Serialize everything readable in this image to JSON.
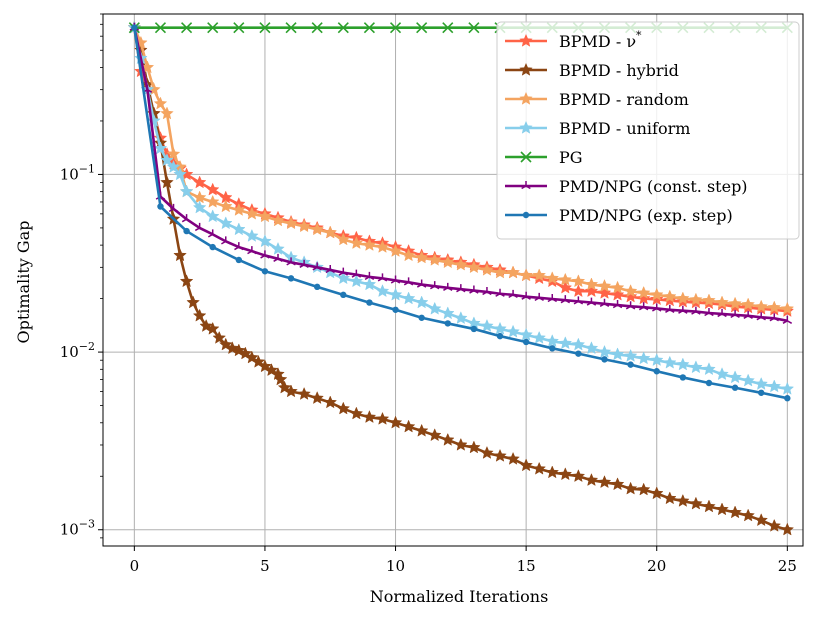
{
  "chart_data": {
    "type": "line",
    "title": "",
    "xlabel": "Normalized Iterations",
    "ylabel": "Optimality Gap",
    "yscale": "log",
    "xlim": [
      -1.2,
      25.6
    ],
    "ylim": [
      0.00081,
      0.8
    ],
    "grid": true,
    "legend_position": "top-right",
    "x_ticks": [
      {
        "value": 0,
        "label": "0"
      },
      {
        "value": 5,
        "label": "5"
      },
      {
        "value": 10,
        "label": "10"
      },
      {
        "value": 15,
        "label": "15"
      },
      {
        "value": 20,
        "label": "20"
      },
      {
        "value": 25,
        "label": "25"
      }
    ],
    "y_ticks": [
      {
        "value": 0.1,
        "base": "10",
        "exp": "−1"
      },
      {
        "value": 0.01,
        "base": "10",
        "exp": "−2"
      },
      {
        "value": 0.001,
        "base": "10",
        "exp": "−3"
      }
    ],
    "series": [
      {
        "name": "BPMD - ν*",
        "label_main": "BPMD - ν",
        "label_sup": "*",
        "color": "#ff6347",
        "marker": "star",
        "x": [
          0,
          0.25,
          0.5,
          0.75,
          1,
          1.25,
          1.5,
          1.75,
          2,
          2.5,
          3,
          3.5,
          4,
          4.5,
          5,
          5.5,
          6,
          6.5,
          7,
          7.5,
          8,
          8.5,
          9,
          9.5,
          10,
          10.5,
          11,
          11.5,
          12,
          12.5,
          13,
          13.5,
          14,
          14.5,
          15,
          15.5,
          16,
          16.5,
          17,
          17.5,
          18,
          18.5,
          19,
          19.5,
          20,
          20.5,
          21,
          21.5,
          22,
          22.5,
          23,
          23.5,
          24,
          24.5,
          25
        ],
        "values": [
          0.67,
          0.38,
          0.3,
          0.22,
          0.16,
          0.13,
          0.115,
          0.108,
          0.1,
          0.09,
          0.082,
          0.074,
          0.068,
          0.063,
          0.06,
          0.057,
          0.054,
          0.052,
          0.05,
          0.047,
          0.045,
          0.044,
          0.042,
          0.041,
          0.039,
          0.037,
          0.035,
          0.034,
          0.033,
          0.032,
          0.031,
          0.03,
          0.029,
          0.028,
          0.027,
          0.026,
          0.025,
          0.023,
          0.022,
          0.022,
          0.0215,
          0.021,
          0.0205,
          0.02,
          0.0198,
          0.0195,
          0.0192,
          0.019,
          0.0188,
          0.0185,
          0.018,
          0.0178,
          0.0175,
          0.0173,
          0.017
        ]
      },
      {
        "name": "BPMD - hybrid",
        "label_main": "BPMD - hybrid",
        "label_sup": "",
        "color": "#8b4513",
        "marker": "star",
        "x": [
          0,
          0.25,
          0.5,
          0.75,
          1,
          1.25,
          1.5,
          1.75,
          2,
          2.25,
          2.5,
          2.75,
          3,
          3.25,
          3.5,
          3.75,
          4,
          4.25,
          4.5,
          4.75,
          5,
          5.25,
          5.5,
          5.6,
          5.75,
          6,
          6.5,
          7,
          7.5,
          8,
          8.5,
          9,
          9.5,
          10,
          10.5,
          11,
          11.5,
          12,
          12.5,
          13,
          13.5,
          14,
          14.5,
          15,
          15.5,
          16,
          16.5,
          17,
          17.5,
          18,
          18.5,
          19,
          19.5,
          20,
          20.5,
          21,
          21.5,
          22,
          22.5,
          23,
          23.5,
          24,
          24.5,
          25
        ],
        "values": [
          0.67,
          0.5,
          0.32,
          0.22,
          0.15,
          0.09,
          0.056,
          0.035,
          0.025,
          0.019,
          0.016,
          0.014,
          0.0135,
          0.012,
          0.011,
          0.0105,
          0.0102,
          0.0098,
          0.0093,
          0.0088,
          0.0083,
          0.0079,
          0.0075,
          0.007,
          0.0063,
          0.006,
          0.0058,
          0.0055,
          0.0052,
          0.0048,
          0.0045,
          0.0043,
          0.0042,
          0.004,
          0.0038,
          0.0036,
          0.0034,
          0.0032,
          0.003,
          0.0029,
          0.0027,
          0.0026,
          0.0025,
          0.0023,
          0.0022,
          0.0021,
          0.00205,
          0.002,
          0.0019,
          0.00185,
          0.0018,
          0.0017,
          0.00168,
          0.0016,
          0.0015,
          0.00145,
          0.0014,
          0.00135,
          0.0013,
          0.00125,
          0.0012,
          0.00113,
          0.00105,
          0.001
        ]
      },
      {
        "name": "BPMD - random",
        "label_main": "BPMD - random",
        "label_sup": "",
        "color": "#f4a460",
        "marker": "star",
        "x": [
          0,
          0.25,
          0.5,
          0.75,
          1,
          1.25,
          1.5,
          1.75,
          2,
          2.5,
          3,
          3.5,
          4,
          4.5,
          5,
          5.5,
          6,
          6.5,
          7,
          7.5,
          8,
          8.5,
          9,
          9.5,
          10,
          10.5,
          11,
          11.5,
          12,
          12.5,
          13,
          13.5,
          14,
          14.5,
          15,
          15.5,
          16,
          16.5,
          17,
          17.5,
          18,
          18.5,
          19,
          19.5,
          20,
          20.5,
          21,
          21.5,
          22,
          22.5,
          23,
          23.5,
          24,
          24.5,
          25
        ],
        "values": [
          0.67,
          0.55,
          0.4,
          0.3,
          0.25,
          0.22,
          0.13,
          0.11,
          0.08,
          0.074,
          0.07,
          0.066,
          0.063,
          0.06,
          0.058,
          0.055,
          0.053,
          0.051,
          0.049,
          0.047,
          0.043,
          0.041,
          0.04,
          0.039,
          0.037,
          0.035,
          0.034,
          0.033,
          0.032,
          0.031,
          0.03,
          0.029,
          0.028,
          0.028,
          0.027,
          0.027,
          0.026,
          0.0255,
          0.025,
          0.024,
          0.0235,
          0.023,
          0.022,
          0.0215,
          0.021,
          0.0205,
          0.02,
          0.0197,
          0.0195,
          0.019,
          0.0187,
          0.0185,
          0.018,
          0.0178,
          0.0175
        ]
      },
      {
        "name": "BPMD - uniform",
        "label_main": "BPMD - uniform",
        "label_sup": "",
        "color": "#87ceeb",
        "marker": "star",
        "x": [
          0,
          0.25,
          0.5,
          0.75,
          1,
          1.25,
          1.5,
          1.75,
          2,
          2.5,
          3,
          3.5,
          4,
          4.5,
          5,
          5.5,
          6,
          6.5,
          7,
          7.5,
          8,
          8.5,
          9,
          9.5,
          10,
          10.5,
          11,
          11.5,
          12,
          12.5,
          13,
          13.5,
          14,
          14.5,
          15,
          15.5,
          16,
          16.5,
          17,
          17.5,
          18,
          18.5,
          19,
          19.5,
          20,
          20.5,
          21,
          21.5,
          22,
          22.5,
          23,
          23.5,
          24,
          24.5,
          25
        ],
        "values": [
          0.67,
          0.45,
          0.3,
          0.2,
          0.14,
          0.12,
          0.11,
          0.1,
          0.08,
          0.065,
          0.058,
          0.053,
          0.049,
          0.045,
          0.042,
          0.038,
          0.034,
          0.032,
          0.03,
          0.028,
          0.026,
          0.025,
          0.024,
          0.022,
          0.021,
          0.02,
          0.019,
          0.0175,
          0.0165,
          0.0155,
          0.0145,
          0.014,
          0.0135,
          0.013,
          0.0125,
          0.012,
          0.0115,
          0.0112,
          0.011,
          0.0105,
          0.01,
          0.0097,
          0.0095,
          0.0092,
          0.009,
          0.0087,
          0.0085,
          0.0082,
          0.008,
          0.0075,
          0.0072,
          0.0069,
          0.0066,
          0.0064,
          0.0062
        ]
      },
      {
        "name": "PG",
        "label_main": "PG",
        "label_sup": "",
        "color": "#2ca02c",
        "marker": "x",
        "x": [
          0,
          1,
          2,
          3,
          4,
          5,
          6,
          7,
          8,
          9,
          10,
          11,
          12,
          13,
          14,
          15,
          16,
          17,
          18,
          19,
          20,
          21,
          22,
          23,
          24,
          25
        ],
        "values": [
          0.67,
          0.67,
          0.67,
          0.67,
          0.67,
          0.67,
          0.67,
          0.67,
          0.67,
          0.67,
          0.67,
          0.67,
          0.67,
          0.67,
          0.67,
          0.67,
          0.67,
          0.67,
          0.67,
          0.67,
          0.67,
          0.67,
          0.67,
          0.67,
          0.67,
          0.67
        ]
      },
      {
        "name": "PMD/NPG (const. step)",
        "label_main": "PMD/NPG (const. step)",
        "label_sup": "",
        "color": "#800080",
        "marker": "tri",
        "x": [
          0,
          0.5,
          1,
          1.5,
          2,
          2.5,
          3,
          3.5,
          4,
          4.5,
          5,
          5.5,
          6,
          6.5,
          7,
          7.5,
          8,
          8.5,
          9,
          9.5,
          10,
          10.5,
          11,
          11.5,
          12,
          12.5,
          13,
          13.5,
          14,
          14.5,
          15,
          15.5,
          16,
          16.5,
          17,
          17.5,
          18,
          18.5,
          19,
          19.5,
          20,
          20.5,
          21,
          21.5,
          22,
          22.5,
          23,
          23.5,
          24,
          24.5,
          25
        ],
        "values": [
          0.67,
          0.3,
          0.075,
          0.064,
          0.056,
          0.05,
          0.046,
          0.042,
          0.039,
          0.037,
          0.035,
          0.0335,
          0.032,
          0.031,
          0.03,
          0.029,
          0.028,
          0.0273,
          0.0265,
          0.026,
          0.0253,
          0.0247,
          0.024,
          0.0235,
          0.023,
          0.0226,
          0.0222,
          0.0218,
          0.0213,
          0.021,
          0.0205,
          0.0202,
          0.0199,
          0.0196,
          0.0193,
          0.019,
          0.0187,
          0.0184,
          0.0181,
          0.0179,
          0.0176,
          0.0173,
          0.0171,
          0.0169,
          0.0166,
          0.0164,
          0.0162,
          0.016,
          0.0157,
          0.0155,
          0.015
        ]
      },
      {
        "name": "PMD/NPG (exp. step)",
        "label_main": "PMD/NPG (exp. step)",
        "label_sup": "",
        "color": "#1f77b4",
        "marker": "dot",
        "x": [
          0,
          1,
          2,
          3,
          4,
          5,
          6,
          7,
          8,
          9,
          10,
          11,
          12,
          13,
          14,
          15,
          16,
          17,
          18,
          19,
          20,
          21,
          22,
          23,
          24,
          25
        ],
        "values": [
          0.67,
          0.066,
          0.048,
          0.039,
          0.033,
          0.0285,
          0.026,
          0.0233,
          0.021,
          0.019,
          0.0173,
          0.0156,
          0.0145,
          0.0135,
          0.0123,
          0.0114,
          0.0105,
          0.0098,
          0.0091,
          0.0085,
          0.0078,
          0.0072,
          0.0067,
          0.0063,
          0.0059,
          0.0055
        ]
      }
    ]
  }
}
